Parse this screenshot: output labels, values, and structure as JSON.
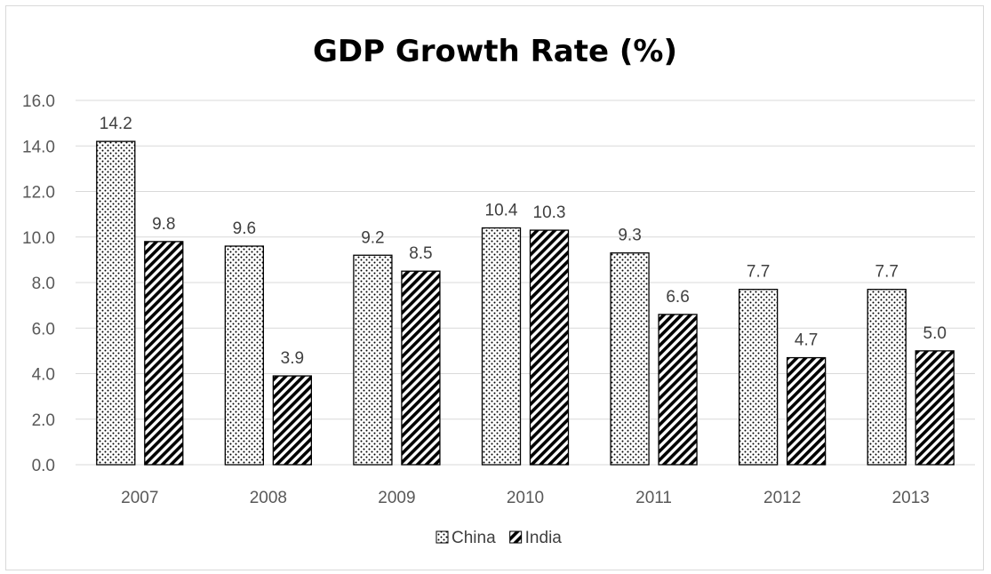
{
  "chart_data": {
    "type": "bar",
    "title": "GDP Growth Rate (%)",
    "xlabel": "",
    "ylabel": "",
    "categories": [
      "2007",
      "2008",
      "2009",
      "2010",
      "2011",
      "2012",
      "2013"
    ],
    "series": [
      {
        "name": "China",
        "values": [
          14.2,
          9.6,
          9.2,
          10.4,
          9.3,
          7.7,
          7.7
        ],
        "pattern": "dots"
      },
      {
        "name": "India",
        "values": [
          9.8,
          3.9,
          8.5,
          10.3,
          6.6,
          4.7,
          5.0
        ],
        "pattern": "diagonal-stripes"
      }
    ],
    "ylim": [
      0,
      16
    ],
    "yticks": [
      "0.0",
      "2.0",
      "4.0",
      "6.0",
      "8.0",
      "10.0",
      "12.0",
      "14.0",
      "16.0"
    ],
    "data_labels": true,
    "grid": true,
    "legend_position": "bottom"
  }
}
